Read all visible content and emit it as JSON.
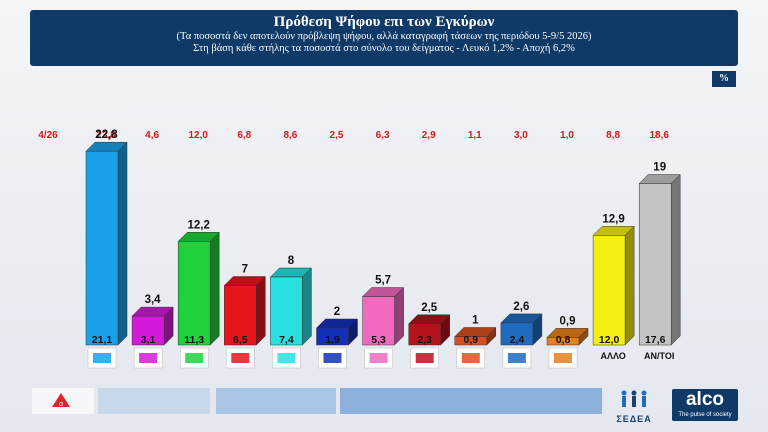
{
  "header": {
    "title": "Πρόθεση Ψήφου επι των Εγκύρων",
    "subtitle": "(Τα ποσοστά δεν αποτελούν πρόβλεψη ψήφου, αλλά καταγραφή τάσεων της περιόδου  5-9/5 2026)",
    "note": "Στη βάση κάθε στήλης τα ποσοστά στο σύνολο του δείγματος - Λευκό 1,2% - Αποχή 6,2%"
  },
  "unit_badge": "%",
  "colors": {
    "header_bg": "#0f3a67",
    "previous_text": "#d11a1a"
  },
  "chart_data": {
    "type": "bar",
    "previous_label": "4/26",
    "parties": [
      {
        "logo": "nd-logo",
        "label": "",
        "value": 22.8,
        "value_label": "22,8",
        "sample": "21,1",
        "previous": "23,8",
        "color": "#1aa0e8"
      },
      {
        "logo": "syriza-logo",
        "label": "",
        "value": 3.4,
        "value_label": "3,4",
        "sample": "3,1",
        "previous": "4,6",
        "color": "#d21ad8"
      },
      {
        "logo": "pasok-logo",
        "label": "",
        "value": 12.2,
        "value_label": "12,2",
        "sample": "11,3",
        "previous": "12,0",
        "color": "#1fd13a"
      },
      {
        "logo": "kke-logo",
        "label": "",
        "value": 7,
        "value_label": "7",
        "sample": "6,5",
        "previous": "6,8",
        "color": "#e8141c"
      },
      {
        "logo": "ellisi-logo",
        "label": "",
        "value": 8,
        "value_label": "8",
        "sample": "7,4",
        "previous": "8,6",
        "color": "#28e0e0"
      },
      {
        "logo": "niki-logo",
        "label": "",
        "value": 2,
        "value_label": "2",
        "sample": "1,9",
        "previous": "2,5",
        "color": "#1330b8"
      },
      {
        "logo": "plefsi-logo",
        "label": "",
        "value": 5.7,
        "value_label": "5,7",
        "sample": "5,3",
        "previous": "6,3",
        "color": "#f06ac0"
      },
      {
        "logo": "mera25-logo",
        "label": "",
        "value": 2.5,
        "value_label": "2,5",
        "sample": "2,3",
        "previous": "2,9",
        "color": "#b5121b"
      },
      {
        "logo": "kinima-logo",
        "label": "",
        "value": 1,
        "value_label": "1",
        "sample": "0,9",
        "previous": "1,1",
        "color": "#d9501e"
      },
      {
        "logo": "spartiates-logo",
        "label": "",
        "value": 2.6,
        "value_label": "2,6",
        "sample": "2,4",
        "previous": "3,0",
        "color": "#1e6bc0"
      },
      {
        "logo": "dimokrates-logo",
        "label": "",
        "value": 0.9,
        "value_label": "0,9",
        "sample": "0,8",
        "previous": "1,0",
        "color": "#e8801a"
      },
      {
        "logo": "",
        "label": "ΑΛΛΟ",
        "value": 12.9,
        "value_label": "12,9",
        "sample": "12,0",
        "previous": "8,8",
        "color": "#f5ee14"
      },
      {
        "logo": "",
        "label": "ΑΝ/ΤΟΙ",
        "value": 19,
        "value_label": "19",
        "sample": "17,6",
        "previous": "18,6",
        "color": "#c4c4c4"
      }
    ]
  },
  "footer": {
    "sedea_label": "ΣΕΔΕΑ",
    "brand": "alco",
    "tagline": "The pulse of society"
  }
}
